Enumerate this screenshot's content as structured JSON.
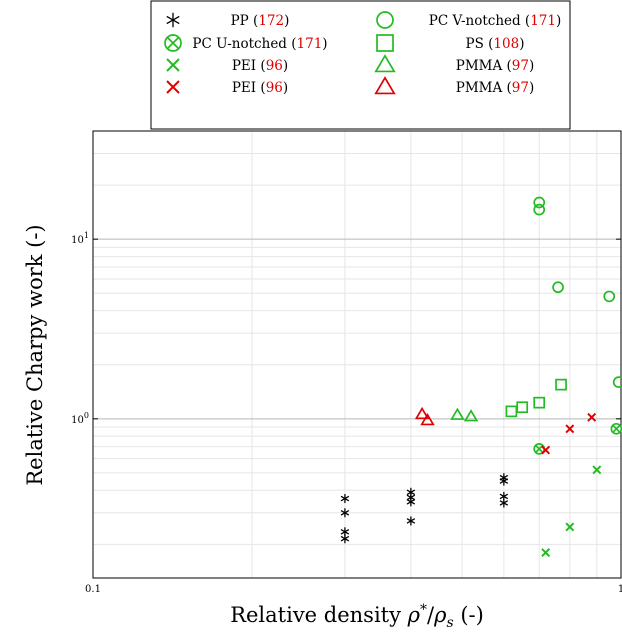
{
  "chart_data": {
    "type": "scatter",
    "title": "",
    "xlabel": "Relative density ρ*/ρs (-)",
    "xlabel_parts": [
      "Relative density ",
      "ρ",
      "*",
      "/",
      "ρ",
      "s",
      " (-)"
    ],
    "ylabel": "Relative Charpy work (-)",
    "xscale": "log",
    "yscale": "log",
    "xlim": [
      0.1,
      1
    ],
    "ylim": [
      0.13,
      40
    ],
    "grid": true,
    "legend_position": "top-center",
    "x_ticks": [
      {
        "value": 0.1,
        "label": "0.1"
      },
      {
        "value": 1,
        "label": "1"
      }
    ],
    "y_ticks": [
      {
        "value": 1,
        "label": "10^0",
        "base": "10",
        "exp": "0"
      },
      {
        "value": 10,
        "label": "10^1",
        "base": "10",
        "exp": "1"
      }
    ],
    "series": [
      {
        "name": "PP",
        "ref": "172",
        "marker": "asterisk",
        "color": "#000000",
        "points": [
          [
            0.3,
            0.36
          ],
          [
            0.3,
            0.3
          ],
          [
            0.3,
            0.235
          ],
          [
            0.3,
            0.215
          ],
          [
            0.4,
            0.39
          ],
          [
            0.4,
            0.365
          ],
          [
            0.4,
            0.345
          ],
          [
            0.4,
            0.27
          ],
          [
            0.6,
            0.47
          ],
          [
            0.6,
            0.45
          ],
          [
            0.6,
            0.37
          ],
          [
            0.6,
            0.34
          ]
        ]
      },
      {
        "name": "PC U-notched",
        "ref": "171",
        "marker": "circle-x",
        "color": "#22bb22",
        "points": [
          [
            0.7,
            0.68
          ],
          [
            0.98,
            0.88
          ]
        ]
      },
      {
        "name": "PEI",
        "ref": "96",
        "marker": "x",
        "color": "#22bb22",
        "points": [
          [
            0.72,
            0.18
          ],
          [
            0.8,
            0.25
          ],
          [
            0.9,
            0.52
          ]
        ]
      },
      {
        "name": "PEI",
        "ref": "96",
        "marker": "x",
        "color": "#e00000",
        "points": [
          [
            0.72,
            0.67
          ],
          [
            0.8,
            0.88
          ],
          [
            0.88,
            1.02
          ]
        ]
      },
      {
        "name": "PC V-notched",
        "ref": "171",
        "marker": "circle",
        "color": "#22bb22",
        "points": [
          [
            0.7,
            16.0
          ],
          [
            0.7,
            14.6
          ],
          [
            0.76,
            5.4
          ],
          [
            0.95,
            4.8
          ],
          [
            0.99,
            1.6
          ]
        ]
      },
      {
        "name": "PS",
        "ref": "108",
        "marker": "square",
        "color": "#22bb22",
        "points": [
          [
            0.62,
            1.1
          ],
          [
            0.65,
            1.16
          ],
          [
            0.7,
            1.23
          ],
          [
            0.77,
            1.55
          ]
        ]
      },
      {
        "name": "PMMA",
        "ref": "97",
        "marker": "triangle",
        "color": "#22bb22",
        "points": [
          [
            0.49,
            1.05
          ],
          [
            0.52,
            1.03
          ]
        ]
      },
      {
        "name": "PMMA",
        "ref": "97",
        "marker": "triangle",
        "color": "#e00000",
        "points": [
          [
            0.42,
            1.06
          ],
          [
            0.43,
            0.98
          ]
        ]
      }
    ],
    "legend_columns": [
      [
        {
          "name": "PP",
          "ref": "172",
          "marker": "asterisk",
          "color": "#000000"
        },
        {
          "name": "PC U-notched",
          "ref": "171",
          "marker": "circle-x",
          "color": "#22bb22"
        },
        {
          "name": "PEI",
          "ref": "96",
          "marker": "x",
          "color": "#22bb22"
        },
        {
          "name": "PEI",
          "ref": "96",
          "marker": "x",
          "color": "#e00000"
        }
      ],
      [
        {
          "name": "PC V-notched",
          "ref": "171",
          "marker": "circle",
          "color": "#22bb22"
        },
        {
          "name": "PS",
          "ref": "108",
          "marker": "square",
          "color": "#22bb22"
        },
        {
          "name": "PMMA",
          "ref": "97",
          "marker": "triangle",
          "color": "#22bb22"
        },
        {
          "name": "PMMA",
          "ref": "97",
          "marker": "triangle",
          "color": "#e00000"
        }
      ]
    ],
    "colors": {
      "green": "#22bb22",
      "red": "#e00000",
      "black": "#000000",
      "reference": "#e00000"
    }
  }
}
